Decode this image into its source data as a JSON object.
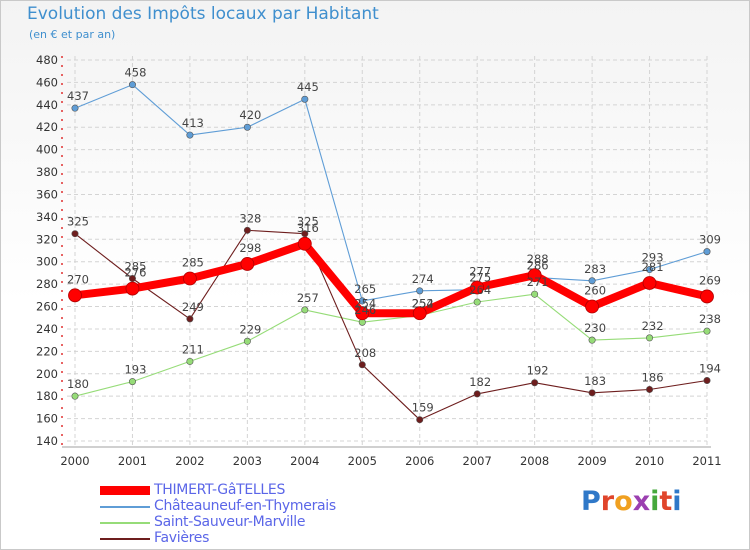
{
  "header": {
    "title": "Evolution des Impôts locaux par Habitant",
    "subtitle": "(en € et par an)"
  },
  "logo": {
    "text": "Proxiti",
    "letter_colors": [
      "#2f78c8",
      "#e0452b",
      "#f0a020",
      "#9b3fb0",
      "#46a83c",
      "#e0452b",
      "#2f78c8"
    ]
  },
  "chart_data": {
    "type": "line",
    "title": "Evolution des Impôts locaux par Habitant",
    "subtitle": "(en € et par an)",
    "xlabel": "",
    "ylabel": "",
    "x": [
      "2000",
      "2001",
      "2002",
      "2003",
      "2004",
      "2005",
      "2006",
      "2007",
      "2008",
      "2009",
      "2010",
      "2011"
    ],
    "ylim": [
      140,
      480
    ],
    "yticks": [
      140,
      160,
      180,
      200,
      220,
      240,
      260,
      280,
      300,
      320,
      340,
      360,
      380,
      400,
      420,
      440,
      460,
      480
    ],
    "grid": true,
    "legend_position": "bottom-left",
    "series": [
      {
        "name": "THIMERT-GâTELLES",
        "color": "#ff0000",
        "values": [
          270,
          276,
          285,
          298,
          316,
          254,
          254,
          277,
          288,
          260,
          281,
          269
        ],
        "labels": [
          "270",
          "276",
          "285",
          "298",
          "316",
          "254",
          "254",
          "277",
          "288",
          "260",
          "281",
          "269"
        ]
      },
      {
        "name": "Châteauneuf-en-Thymerais",
        "color": "#5f9dd6",
        "values": [
          437,
          458,
          413,
          420,
          445,
          265,
          274,
          275,
          286,
          283,
          293,
          309
        ],
        "labels": [
          "437",
          "458",
          "413",
          "420",
          "445",
          "265",
          "274",
          "275",
          "286",
          "283",
          "293",
          "309"
        ]
      },
      {
        "name": "Saint-Sauveur-Marville",
        "color": "#96dc78",
        "values": [
          180,
          193,
          211,
          229,
          257,
          246,
          252,
          264,
          271,
          230,
          232,
          238
        ],
        "labels": [
          "180",
          "193",
          "211",
          "229",
          "257",
          "246",
          "252",
          "264",
          "271",
          "230",
          "232",
          "238"
        ]
      },
      {
        "name": "Favières",
        "color": "#6e1e1e",
        "values": [
          325,
          285,
          249,
          328,
          325,
          208,
          159,
          182,
          192,
          183,
          186,
          194
        ],
        "labels": [
          "325",
          "285",
          "249",
          "328",
          "325",
          "208",
          "159",
          "182",
          "192",
          "183",
          "186",
          "194"
        ]
      }
    ]
  }
}
